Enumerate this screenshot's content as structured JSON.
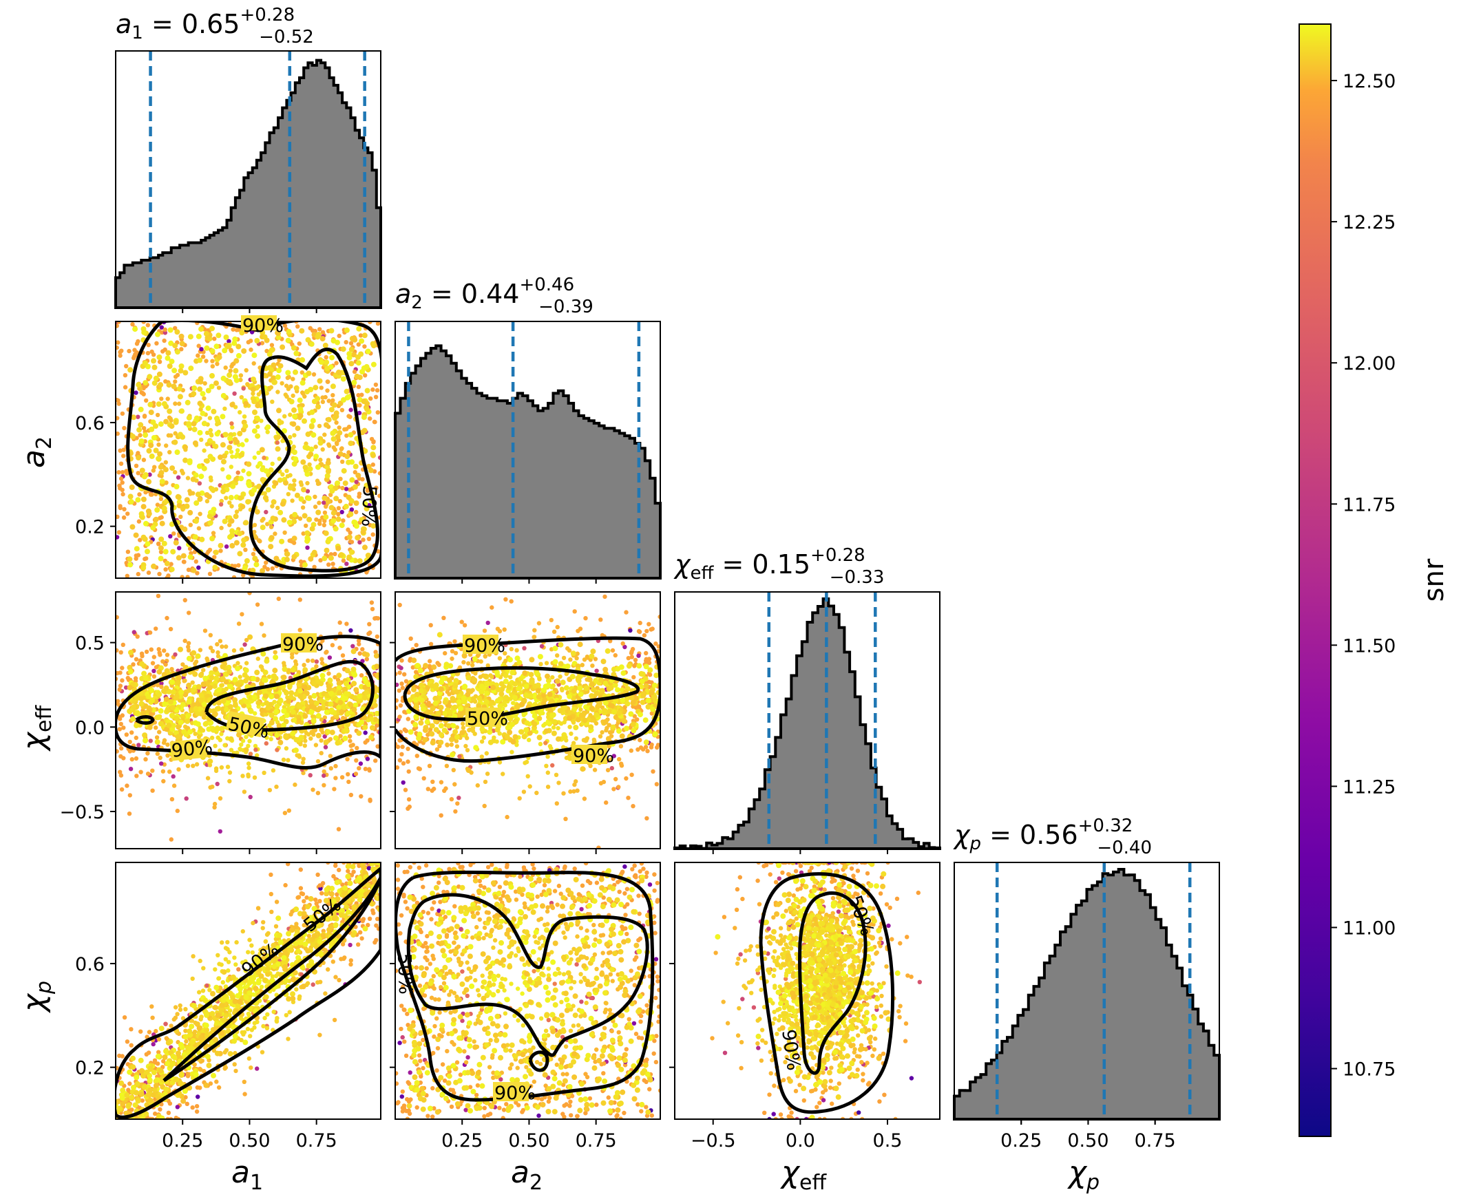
{
  "chart_data": {
    "type": "corner",
    "parameters": [
      {
        "key": "a1",
        "symbol": "a",
        "sub": "1",
        "title_value": "0.65",
        "title_plus": "+0.28",
        "title_minus": "−0.52",
        "range": [
          0.0,
          0.99
        ],
        "ticks": [
          0.25,
          0.5,
          0.75
        ],
        "tick_labels": [
          "0.25",
          "0.50",
          "0.75"
        ],
        "quantiles": [
          0.13,
          0.65,
          0.93
        ],
        "hist_bins": [
          0.12,
          0.14,
          0.17,
          0.17,
          0.18,
          0.18,
          0.19,
          0.19,
          0.2,
          0.2,
          0.21,
          0.22,
          0.22,
          0.24,
          0.24,
          0.25,
          0.25,
          0.26,
          0.26,
          0.26,
          0.27,
          0.28,
          0.29,
          0.3,
          0.31,
          0.32,
          0.35,
          0.4,
          0.44,
          0.47,
          0.52,
          0.54,
          0.56,
          0.59,
          0.62,
          0.66,
          0.7,
          0.72,
          0.76,
          0.8,
          0.83,
          0.86,
          0.9,
          0.92,
          0.96,
          0.98,
          0.97,
          0.99,
          0.98,
          0.96,
          0.92,
          0.89,
          0.86,
          0.82,
          0.8,
          0.76,
          0.71,
          0.68,
          0.64,
          0.62,
          0.55,
          0.4
        ]
      },
      {
        "key": "a2",
        "symbol": "a",
        "sub": "2",
        "title_value": "0.44",
        "title_plus": "+0.46",
        "title_minus": "−0.39",
        "range": [
          0.0,
          0.99
        ],
        "ticks": [
          0.2,
          0.6
        ],
        "tick_labels": [
          "0.2",
          "0.6"
        ],
        "x_ticks": [
          0.25,
          0.5,
          0.75
        ],
        "x_tick_labels": [
          "0.25",
          "0.50",
          "0.75"
        ],
        "quantiles": [
          0.05,
          0.44,
          0.91
        ],
        "hist_bins": [
          0.66,
          0.72,
          0.78,
          0.82,
          0.85,
          0.88,
          0.9,
          0.92,
          0.93,
          0.91,
          0.89,
          0.86,
          0.83,
          0.8,
          0.78,
          0.76,
          0.74,
          0.73,
          0.72,
          0.72,
          0.71,
          0.71,
          0.7,
          0.72,
          0.74,
          0.73,
          0.71,
          0.69,
          0.67,
          0.68,
          0.7,
          0.74,
          0.75,
          0.73,
          0.7,
          0.67,
          0.65,
          0.64,
          0.63,
          0.62,
          0.61,
          0.6,
          0.6,
          0.59,
          0.58,
          0.57,
          0.56,
          0.54,
          0.52,
          0.47,
          0.4,
          0.3
        ]
      },
      {
        "key": "chi_eff",
        "symbol": "χ",
        "sub": "eff",
        "title_value": "0.15",
        "title_plus": "+0.28",
        "title_minus": "−0.33",
        "range": [
          -0.72,
          0.8
        ],
        "ticks": [
          -0.5,
          0.0,
          0.5
        ],
        "tick_labels": [
          "−0.5",
          "0.0",
          "0.5"
        ],
        "quantiles": [
          -0.18,
          0.15,
          0.43
        ],
        "hist_mean": 0.15,
        "hist_sigma_left": 0.22,
        "hist_sigma_right": 0.18
      },
      {
        "key": "chi_p",
        "symbol": "χ",
        "sub": "p",
        "title_value": "0.56",
        "title_plus": "+0.32",
        "title_minus": "−0.40",
        "range": [
          0.0,
          0.99
        ],
        "ticks": [
          0.2,
          0.6
        ],
        "tick_labels": [
          "0.2",
          "0.6"
        ],
        "x_ticks": [
          0.25,
          0.5,
          0.75
        ],
        "x_tick_labels": [
          "0.25",
          "0.50",
          "0.75"
        ],
        "quantiles": [
          0.16,
          0.56,
          0.88
        ],
        "hist_mean": 0.62,
        "hist_sigma_left": 0.28,
        "hist_sigma_right": 0.22
      }
    ],
    "colorbar": {
      "label": "snr",
      "range": [
        10.63,
        12.6
      ],
      "ticks": [
        10.75,
        11.0,
        11.25,
        11.5,
        11.75,
        12.0,
        12.25,
        12.5
      ],
      "tick_labels": [
        "10.75",
        "11.00",
        "11.25",
        "11.50",
        "11.75",
        "12.00",
        "12.25",
        "12.50"
      ],
      "colormap": "plasma"
    },
    "contour_labels": [
      "50%",
      "90%"
    ],
    "colors": {
      "histogram_fill": "#808080",
      "histogram_edge": "#000000",
      "quantile_line": "#1f77b4",
      "contour": "#000000"
    }
  }
}
